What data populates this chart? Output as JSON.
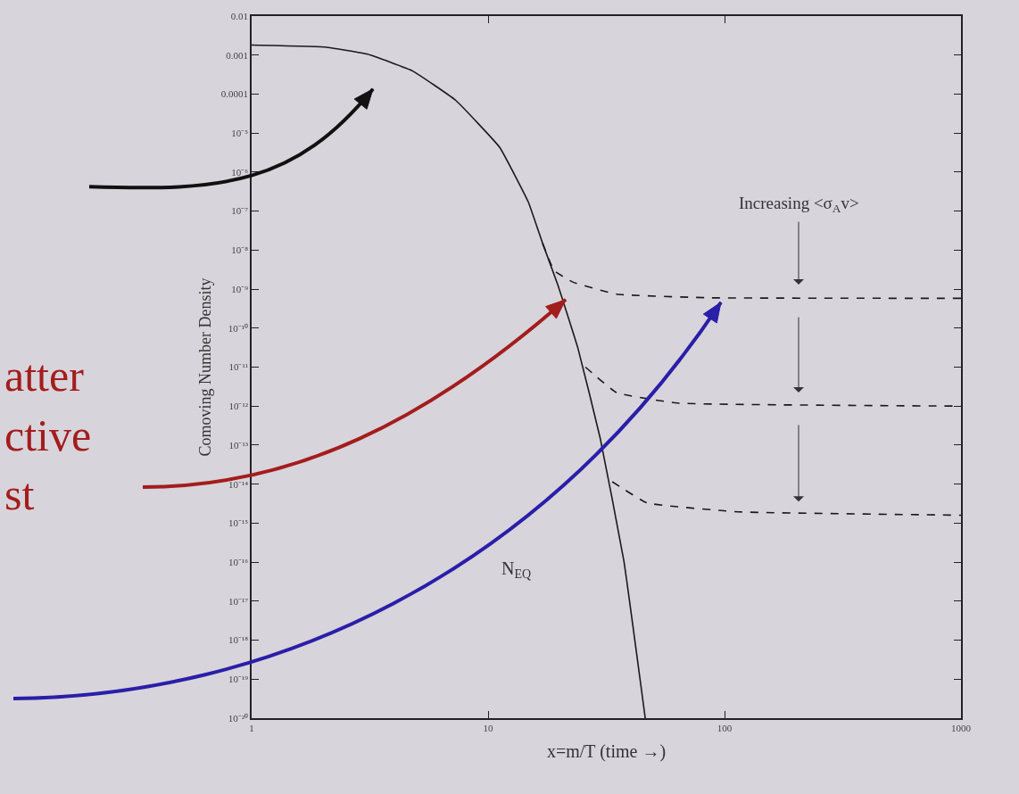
{
  "chart_data": {
    "type": "line",
    "xlabel": "x=m/T (time →)",
    "ylabel": "Comoving Number Density",
    "log": "xy",
    "grid": false,
    "marker": "none",
    "xlim": [
      1,
      1000
    ],
    "xticks": [
      1,
      10,
      100,
      1000
    ],
    "ylim": [
      1e-20,
      0.01
    ],
    "yticks": [
      0.01,
      0.001,
      0.0001,
      {
        "value": 1e-05,
        "label": "10⁻⁵"
      },
      {
        "value": 1e-06,
        "label": "10⁻⁶"
      },
      {
        "value": 1e-07,
        "label": "10⁻⁷"
      },
      {
        "value": 1e-08,
        "label": "10⁻⁸"
      },
      {
        "value": 1e-09,
        "label": "10⁻⁹"
      },
      {
        "value": 1e-10,
        "label": "10⁻¹⁰"
      },
      {
        "value": 1e-11,
        "label": "10⁻¹¹"
      },
      {
        "value": 1e-12,
        "label": "10⁻¹²"
      },
      {
        "value": 1e-13,
        "label": "10⁻¹³"
      },
      {
        "value": 1e-14,
        "label": "10⁻¹⁴"
      },
      {
        "value": 1e-15,
        "label": "10⁻¹⁵"
      },
      {
        "value": 1e-16,
        "label": "10⁻¹⁶"
      },
      {
        "value": 1e-17,
        "label": "10⁻¹⁷"
      },
      {
        "value": 1e-18,
        "label": "10⁻¹⁸"
      },
      {
        "value": 1e-19,
        "label": "10⁻¹⁹"
      },
      {
        "value": 1e-20,
        "label": "10⁻²⁰"
      }
    ],
    "series": [
      {
        "color": "#1a1a1a",
        "line_style": "solid",
        "x": [
          1,
          2.05,
          3.1,
          4.8,
          7.3,
          11.2,
          14.8,
          17,
          19.7,
          24,
          29.8,
          37.5,
          46.2
        ],
        "values": [
          0.0018,
          0.0016,
          0.00105,
          0.00039,
          6.9e-05,
          4.3e-06,
          1.7e-07,
          1.5e-08,
          1.3e-09,
          3e-11,
          1.5e-13,
          1.1e-16,
          1e-20
        ]
      },
      {
        "color": "#1a1a1a",
        "line_style": "dashed",
        "x": [
          17,
          19,
          22.9,
          35,
          85,
          1000
        ],
        "values": [
          1.5e-08,
          3e-09,
          1.5e-09,
          7.4e-10,
          6e-10,
          5.8e-10
        ]
      },
      {
        "color": "#1a1a1a",
        "line_style": "dashed",
        "x": [
          25.8,
          35,
          63,
          1000
        ],
        "values": [
          1e-11,
          2.2e-12,
          1.2e-12,
          1e-12
        ]
      },
      {
        "color": "#1a1a1a",
        "line_style": "dashed",
        "x": [
          33.5,
          47,
          114,
          1000
        ],
        "values": [
          1.15e-14,
          3.3e-15,
          1.95e-15,
          1.6e-15
        ]
      }
    ],
    "annotations": [
      "Increasing <σ$_{A}$v>",
      "N$_{EQ}$",
      "atter",
      "ctive",
      "st"
    ]
  }
}
